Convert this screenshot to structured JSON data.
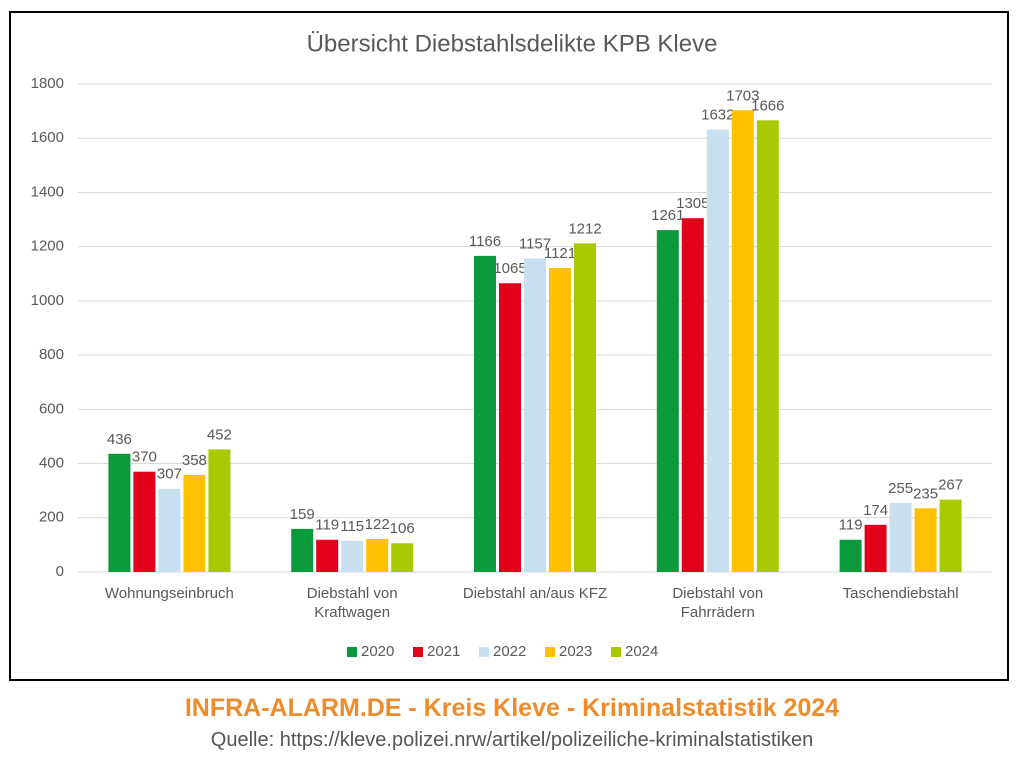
{
  "chart_data": {
    "type": "bar",
    "title": "Übersicht Diebstahlsdelikte KPB Kleve",
    "categories": [
      "Wohnungseinbruch",
      "Diebstahl von\nKraftwagen",
      "Diebstahl an/aus KFZ",
      "Diebstahl von\nFahrrädern",
      "Taschendiebstahl"
    ],
    "series": [
      {
        "name": "2020",
        "color": "#0a9a3c",
        "values": [
          436,
          159,
          1166,
          1261,
          119
        ]
      },
      {
        "name": "2021",
        "color": "#e3001b",
        "values": [
          370,
          119,
          1065,
          1305,
          174
        ]
      },
      {
        "name": "2022",
        "color": "#c7dfee",
        "values": [
          307,
          115,
          1157,
          1632,
          255
        ]
      },
      {
        "name": "2023",
        "color": "#ffc000",
        "values": [
          358,
          122,
          1121,
          1703,
          235
        ]
      },
      {
        "name": "2024",
        "color": "#a8c800",
        "values": [
          452,
          106,
          1212,
          1666,
          267
        ]
      }
    ],
    "ylim": [
      0,
      1800
    ],
    "yticks": [
      0,
      200,
      400,
      600,
      800,
      1000,
      1200,
      1400,
      1600,
      1800
    ],
    "grid": true,
    "legend": "bottom"
  },
  "footer": {
    "title": "INFRA-ALARM.DE - Kreis Kleve - Kriminalstatistik 2024",
    "source": "Quelle: https://kleve.polizei.nrw/artikel/polizeiliche-kriminalstatistiken"
  }
}
